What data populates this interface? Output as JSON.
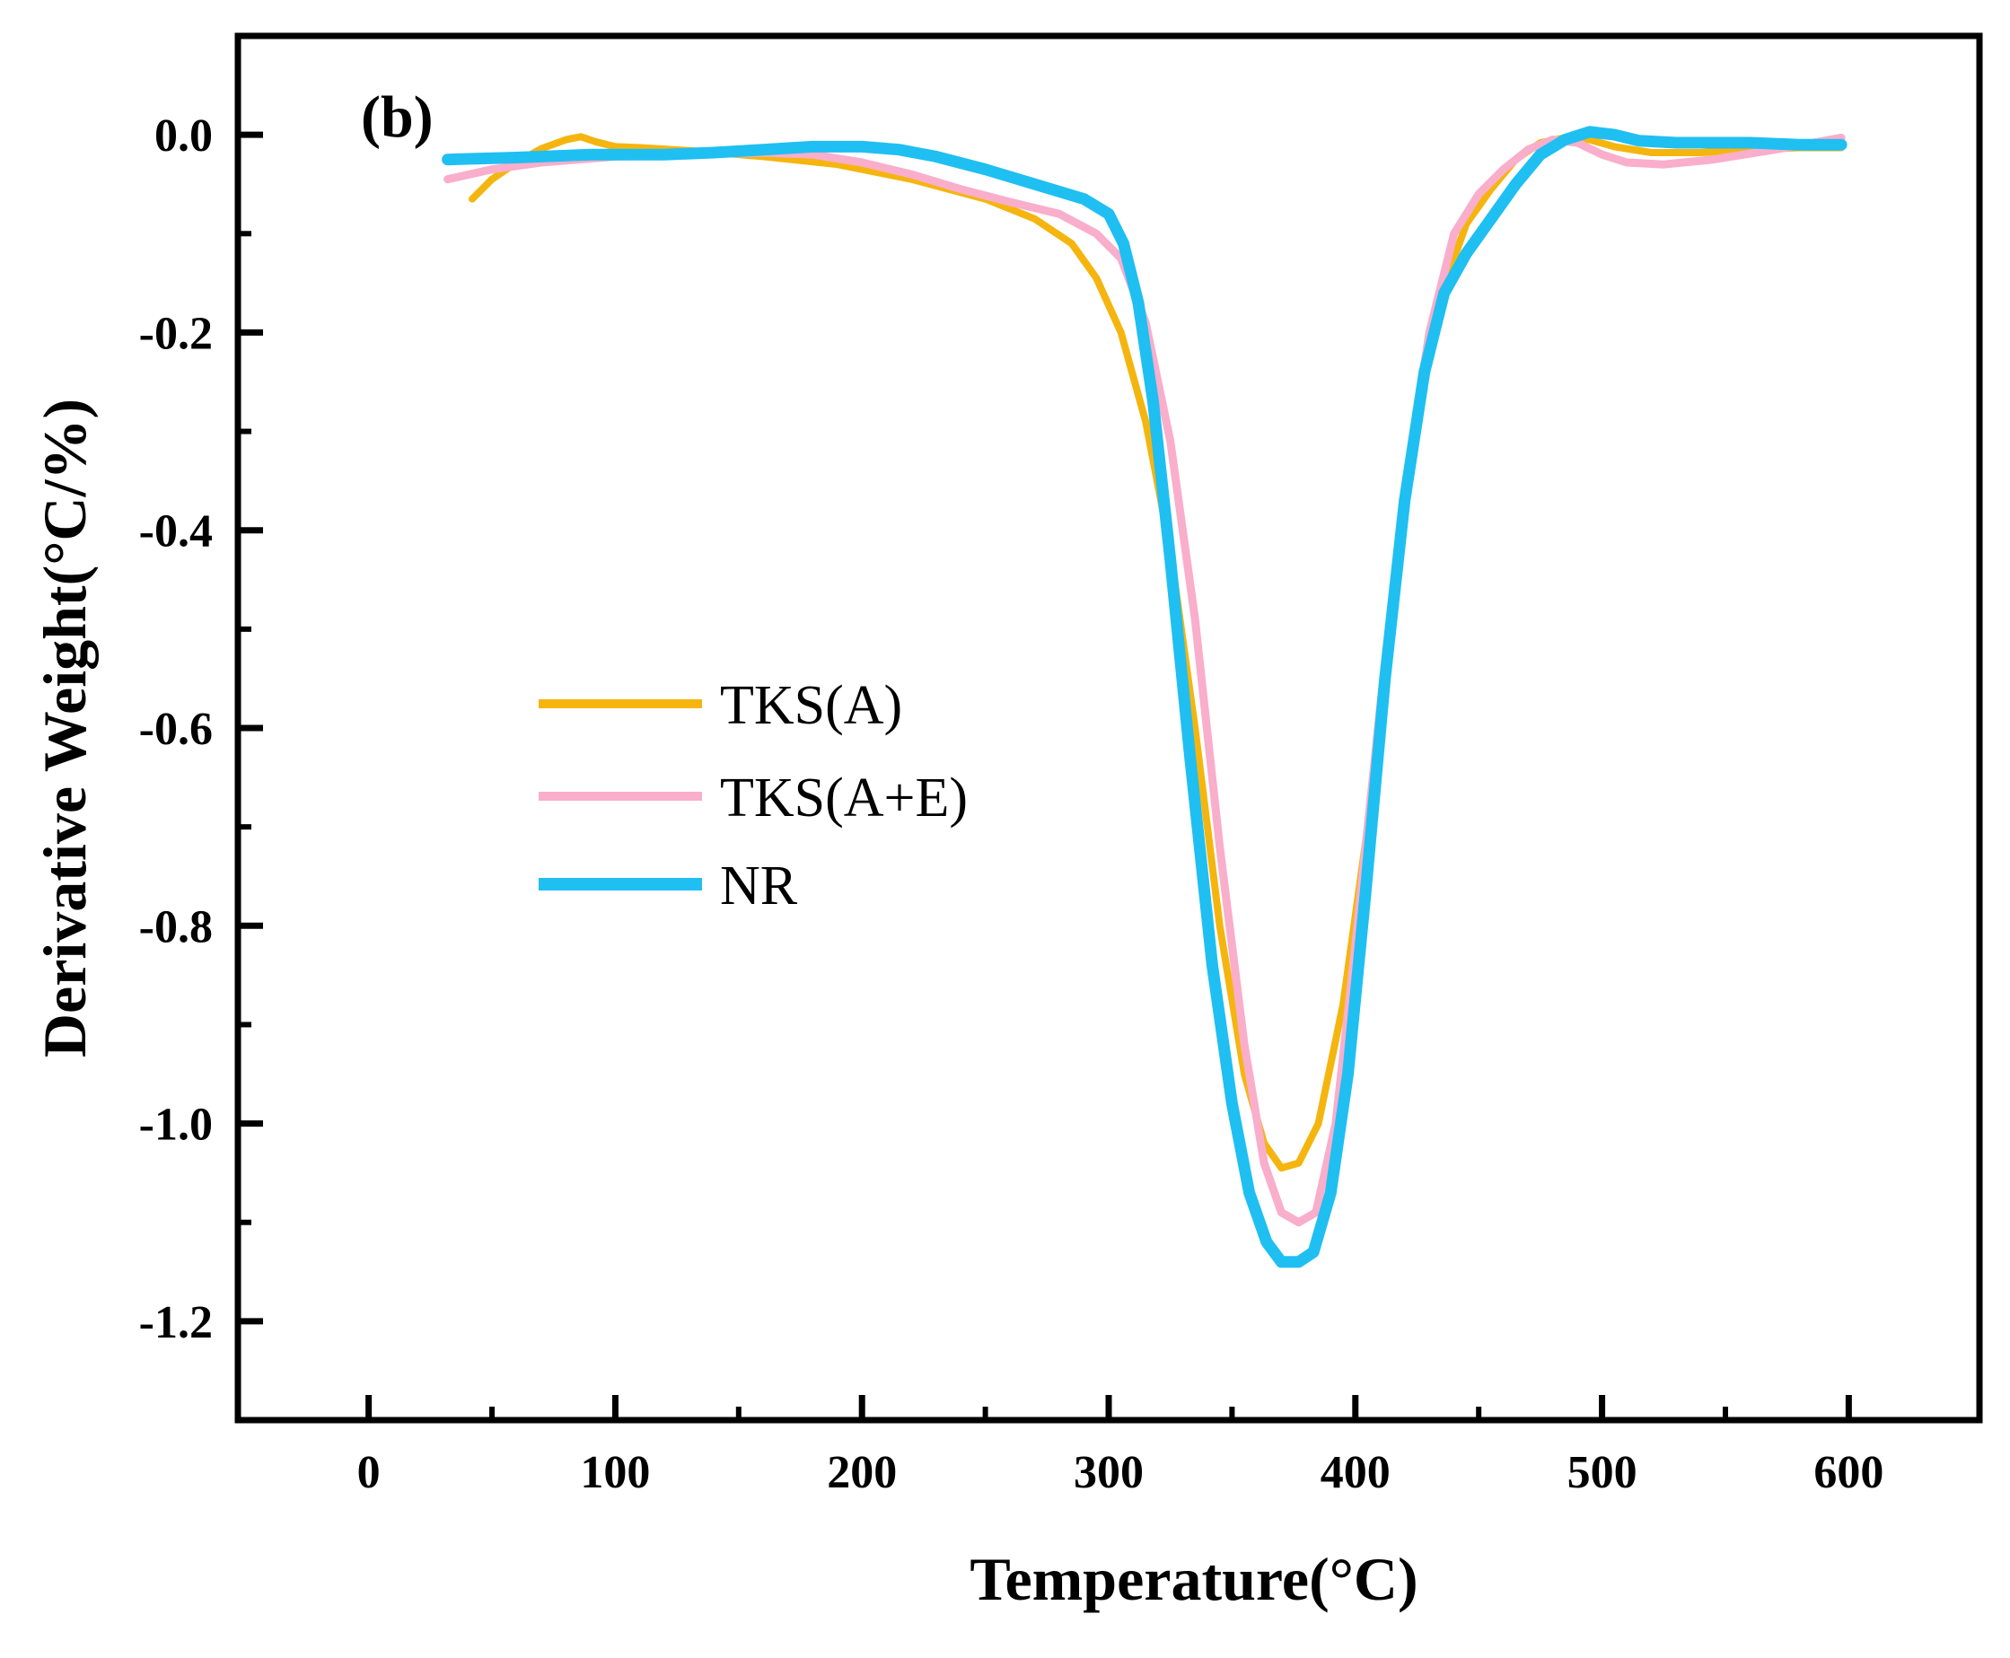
{
  "chart_data": {
    "type": "line",
    "panel_label": "(b)",
    "xlabel": "Temperature(°C)",
    "ylabel": "Derivative Weight(°C/%)",
    "xlim": [
      -53,
      653
    ],
    "ylim": [
      -1.3,
      0.1
    ],
    "x_ticks": [
      0,
      100,
      200,
      300,
      400,
      500,
      600
    ],
    "x_tick_labels": [
      "0",
      "100",
      "200",
      "300",
      "400",
      "500",
      "600"
    ],
    "y_ticks": [
      0.0,
      -0.2,
      -0.4,
      -0.6,
      -0.8,
      -1.0,
      -1.2
    ],
    "y_tick_labels": [
      "0.0",
      "-0.2",
      "-0.4",
      "-0.6",
      "-0.8",
      "-1.0",
      "-1.2"
    ],
    "legend_position": "center-left",
    "grid": false,
    "series": [
      {
        "name": "TKS(A)",
        "color": "#F5B50F",
        "points": [
          [
            42,
            -0.065
          ],
          [
            50,
            -0.045
          ],
          [
            60,
            -0.028
          ],
          [
            70,
            -0.014
          ],
          [
            80,
            -0.005
          ],
          [
            86,
            -0.002
          ],
          [
            92,
            -0.007
          ],
          [
            100,
            -0.012
          ],
          [
            110,
            -0.013
          ],
          [
            130,
            -0.016
          ],
          [
            160,
            -0.022
          ],
          [
            190,
            -0.03
          ],
          [
            220,
            -0.045
          ],
          [
            250,
            -0.065
          ],
          [
            270,
            -0.085
          ],
          [
            285,
            -0.11
          ],
          [
            295,
            -0.145
          ],
          [
            305,
            -0.2
          ],
          [
            315,
            -0.29
          ],
          [
            325,
            -0.42
          ],
          [
            335,
            -0.6
          ],
          [
            345,
            -0.8
          ],
          [
            355,
            -0.95
          ],
          [
            363,
            -1.02
          ],
          [
            370,
            -1.045
          ],
          [
            377,
            -1.04
          ],
          [
            385,
            -1.0
          ],
          [
            395,
            -0.88
          ],
          [
            405,
            -0.7
          ],
          [
            415,
            -0.48
          ],
          [
            425,
            -0.29
          ],
          [
            435,
            -0.16
          ],
          [
            445,
            -0.09
          ],
          [
            455,
            -0.055
          ],
          [
            465,
            -0.025
          ],
          [
            475,
            -0.008
          ],
          [
            485,
            -0.003
          ],
          [
            495,
            -0.005
          ],
          [
            505,
            -0.012
          ],
          [
            520,
            -0.018
          ],
          [
            540,
            -0.018
          ],
          [
            560,
            -0.015
          ],
          [
            580,
            -0.013
          ],
          [
            597,
            -0.013
          ]
        ]
      },
      {
        "name": "TKS(A+E)",
        "color": "#F9AECB",
        "points": [
          [
            32,
            -0.045
          ],
          [
            50,
            -0.035
          ],
          [
            70,
            -0.028
          ],
          [
            100,
            -0.022
          ],
          [
            130,
            -0.02
          ],
          [
            160,
            -0.018
          ],
          [
            180,
            -0.02
          ],
          [
            200,
            -0.028
          ],
          [
            220,
            -0.04
          ],
          [
            240,
            -0.055
          ],
          [
            260,
            -0.068
          ],
          [
            280,
            -0.08
          ],
          [
            295,
            -0.1
          ],
          [
            305,
            -0.125
          ],
          [
            315,
            -0.19
          ],
          [
            325,
            -0.31
          ],
          [
            335,
            -0.49
          ],
          [
            345,
            -0.72
          ],
          [
            355,
            -0.92
          ],
          [
            363,
            -1.04
          ],
          [
            370,
            -1.09
          ],
          [
            377,
            -1.1
          ],
          [
            384,
            -1.09
          ],
          [
            392,
            -1.0
          ],
          [
            400,
            -0.82
          ],
          [
            410,
            -0.58
          ],
          [
            420,
            -0.36
          ],
          [
            430,
            -0.2
          ],
          [
            440,
            -0.1
          ],
          [
            450,
            -0.06
          ],
          [
            460,
            -0.035
          ],
          [
            470,
            -0.015
          ],
          [
            480,
            -0.005
          ],
          [
            490,
            -0.008
          ],
          [
            500,
            -0.02
          ],
          [
            510,
            -0.028
          ],
          [
            525,
            -0.03
          ],
          [
            545,
            -0.025
          ],
          [
            570,
            -0.015
          ],
          [
            597,
            -0.003
          ]
        ]
      },
      {
        "name": "NR",
        "color": "#1FBFF2",
        "points": [
          [
            32,
            -0.025
          ],
          [
            60,
            -0.023
          ],
          [
            90,
            -0.02
          ],
          [
            120,
            -0.02
          ],
          [
            140,
            -0.018
          ],
          [
            160,
            -0.015
          ],
          [
            180,
            -0.012
          ],
          [
            200,
            -0.012
          ],
          [
            215,
            -0.015
          ],
          [
            230,
            -0.022
          ],
          [
            250,
            -0.035
          ],
          [
            270,
            -0.05
          ],
          [
            290,
            -0.065
          ],
          [
            300,
            -0.08
          ],
          [
            306,
            -0.11
          ],
          [
            312,
            -0.17
          ],
          [
            318,
            -0.27
          ],
          [
            325,
            -0.43
          ],
          [
            333,
            -0.63
          ],
          [
            342,
            -0.84
          ],
          [
            350,
            -0.98
          ],
          [
            357,
            -1.07
          ],
          [
            364,
            -1.12
          ],
          [
            370,
            -1.14
          ],
          [
            377,
            -1.14
          ],
          [
            383,
            -1.13
          ],
          [
            390,
            -1.07
          ],
          [
            397,
            -0.95
          ],
          [
            404,
            -0.77
          ],
          [
            412,
            -0.55
          ],
          [
            420,
            -0.37
          ],
          [
            428,
            -0.24
          ],
          [
            436,
            -0.16
          ],
          [
            445,
            -0.12
          ],
          [
            455,
            -0.085
          ],
          [
            465,
            -0.05
          ],
          [
            475,
            -0.02
          ],
          [
            485,
            -0.005
          ],
          [
            495,
            0.003
          ],
          [
            505,
            0.0
          ],
          [
            515,
            -0.006
          ],
          [
            530,
            -0.008
          ],
          [
            560,
            -0.008
          ],
          [
            580,
            -0.01
          ],
          [
            597,
            -0.01
          ]
        ]
      }
    ]
  }
}
